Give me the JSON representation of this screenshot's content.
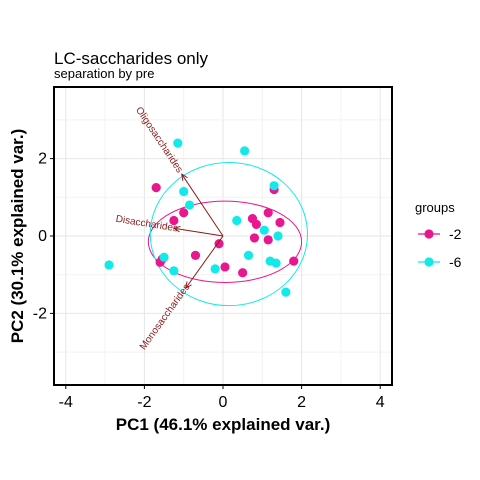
{
  "chart_data": {
    "type": "scatter",
    "title": "LC-saccharides only",
    "subtitle": "separation by pre",
    "xlabel": "PC1 (46.1% explained var.)",
    "ylabel": "PC2 (30.1% explained var.)",
    "xlim": [
      -4.3,
      4.3
    ],
    "ylim": [
      -3.85,
      3.85
    ],
    "x_ticks": [
      -4,
      -2,
      0,
      2,
      4
    ],
    "y_ticks": [
      -2,
      0,
      2
    ],
    "x_tick_labels": [
      "-4",
      "-2",
      "0",
      "2",
      "4"
    ],
    "y_tick_labels": [
      "-2",
      "0",
      "2"
    ],
    "grid": true,
    "legend_position": "right",
    "legend_title": "groups",
    "series": [
      {
        "name": "-2",
        "color": "#e8168f",
        "points": [
          [
            -1.7,
            1.25
          ],
          [
            -1.0,
            0.6
          ],
          [
            -1.25,
            0.4
          ],
          [
            -1.55,
            -0.6
          ],
          [
            -1.6,
            -0.68
          ],
          [
            -0.7,
            -0.5
          ],
          [
            -0.1,
            -0.2
          ],
          [
            0.05,
            -0.8
          ],
          [
            0.5,
            -0.95
          ],
          [
            0.75,
            0.45
          ],
          [
            0.85,
            0.3
          ],
          [
            1.15,
            -0.1
          ],
          [
            1.15,
            0.6
          ],
          [
            1.3,
            1.2
          ],
          [
            1.45,
            0.35
          ],
          [
            1.8,
            -0.65
          ],
          [
            0.8,
            -0.05
          ]
        ],
        "ellipse": {
          "cx": 0.05,
          "cy": -0.15,
          "rx": 1.95,
          "ry": 1.05
        }
      },
      {
        "name": "-6",
        "color": "#12eaea",
        "points": [
          [
            -2.9,
            -0.75
          ],
          [
            -1.15,
            2.4
          ],
          [
            -1.0,
            1.15
          ],
          [
            -0.85,
            0.8
          ],
          [
            -1.5,
            -0.55
          ],
          [
            -1.25,
            -0.9
          ],
          [
            -0.2,
            -0.85
          ],
          [
            0.35,
            0.4
          ],
          [
            0.55,
            2.2
          ],
          [
            0.65,
            -0.5
          ],
          [
            1.05,
            0.15
          ],
          [
            1.2,
            -0.65
          ],
          [
            1.3,
            1.3
          ],
          [
            1.35,
            -0.7
          ],
          [
            1.6,
            -1.45
          ],
          [
            1.4,
            0.0
          ]
        ],
        "ellipse": {
          "cx": 0.15,
          "cy": 0.05,
          "rx": 2.0,
          "ry": 1.85
        }
      }
    ],
    "loadings": [
      {
        "label": "Oligosaccharides",
        "x": -1.05,
        "y": 1.6
      },
      {
        "label": "Disaccharides",
        "x": -1.25,
        "y": 0.2
      },
      {
        "label": "Monosaccharides",
        "x": -0.95,
        "y": -1.35
      }
    ]
  }
}
